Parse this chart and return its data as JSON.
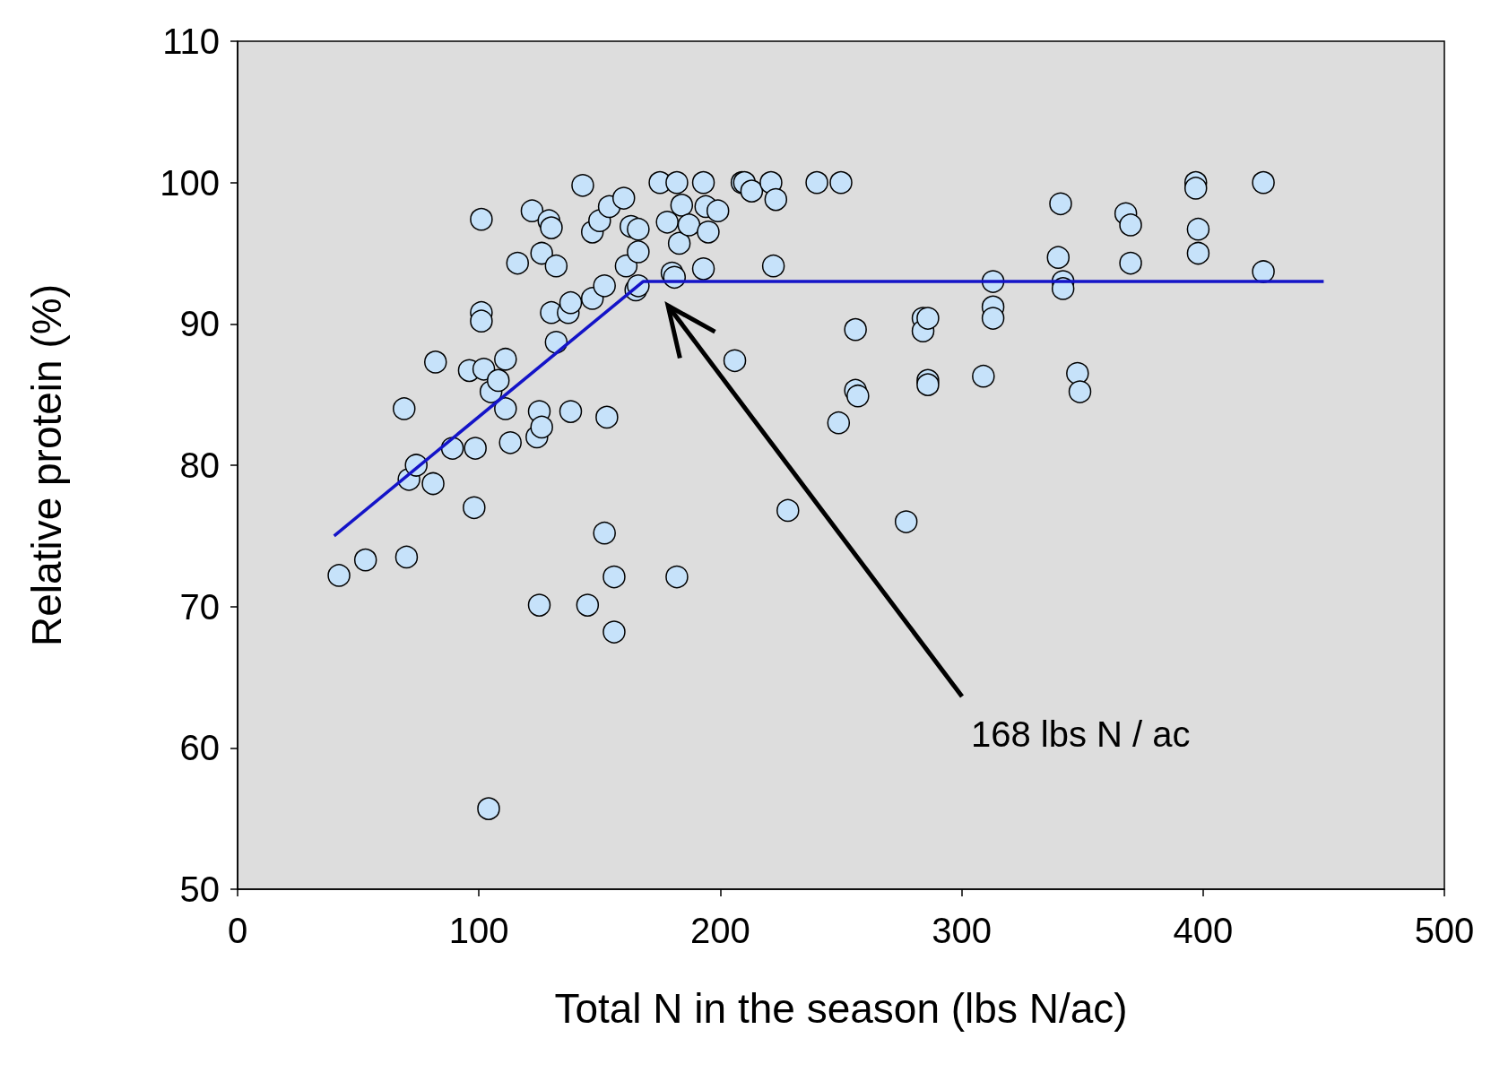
{
  "chart_data": {
    "type": "scatter",
    "xlabel": "Total N in the season (lbs N/ac)",
    "ylabel": "Relative protein (%)",
    "xlim": [
      0,
      500
    ],
    "xticks": [
      0,
      100,
      200,
      300,
      400,
      500
    ],
    "ylim": [
      50,
      110
    ],
    "yticks": [
      50,
      60,
      70,
      80,
      90,
      100,
      110
    ],
    "grid": false,
    "marker": "circle",
    "annotations": [
      "168 lbs N / ac"
    ],
    "series": [
      {
        "color": "#c6e2fa",
        "x": [
          42,
          53,
          69,
          70,
          71,
          74,
          81,
          82,
          89,
          96,
          98.5,
          98,
          101,
          101,
          101,
          102,
          104,
          105,
          108,
          111,
          111,
          113,
          116,
          122,
          124,
          125,
          125,
          126,
          126,
          129,
          130,
          130,
          132,
          132,
          137,
          138,
          138,
          143,
          145,
          147,
          147,
          150,
          152,
          153,
          152,
          154,
          156,
          156,
          160,
          161,
          163,
          165,
          166,
          166,
          166,
          175,
          178,
          180,
          181,
          182,
          183,
          182,
          184,
          187,
          193,
          193,
          194,
          195,
          199,
          206,
          209,
          210,
          213,
          221,
          223,
          222,
          228,
          240,
          249,
          250,
          256,
          256,
          257,
          277,
          284,
          284,
          286,
          286,
          286,
          309,
          313,
          313,
          313,
          341,
          340,
          342,
          342,
          348,
          349,
          368,
          370,
          370,
          397,
          397,
          398,
          398,
          425,
          425
        ],
        "values": [
          72.2,
          73.3,
          84,
          73.5,
          79,
          80,
          78.7,
          87.3,
          81.2,
          86.7,
          81.2,
          77,
          97.4,
          90.8,
          90.2,
          86.8,
          55.7,
          85.2,
          86,
          87.5,
          84,
          81.6,
          94.3,
          98,
          82,
          70.1,
          83.8,
          82.7,
          95,
          97.3,
          96.8,
          90.8,
          94.1,
          88.7,
          90.8,
          91.5,
          83.8,
          99.8,
          70.1,
          96.5,
          91.8,
          97.3,
          92.7,
          83.4,
          75.2,
          98.3,
          72.1,
          68.2,
          98.9,
          94.1,
          96.9,
          92.4,
          95.1,
          96.7,
          92.7,
          100,
          97.2,
          93.6,
          93.3,
          100,
          95.7,
          72.1,
          98.4,
          97,
          100,
          93.9,
          98.3,
          96.5,
          98,
          87.4,
          100,
          100,
          99.4,
          100,
          98.8,
          94.1,
          76.8,
          100,
          83,
          100,
          89.6,
          85.3,
          84.9,
          76,
          90.4,
          89.5,
          86,
          85.7,
          90.4,
          86.3,
          93,
          91.2,
          90.4,
          98.5,
          94.7,
          93,
          92.5,
          86.5,
          85.2,
          97.8,
          97,
          94.3,
          100,
          99.6,
          96.7,
          95,
          100,
          93.7
        ]
      },
      {
        "type": "line",
        "color": "#1414c8",
        "marker": "none",
        "line_style": "solid",
        "x": [
          40,
          168,
          450
        ],
        "values": [
          75,
          93,
          93
        ]
      }
    ]
  }
}
